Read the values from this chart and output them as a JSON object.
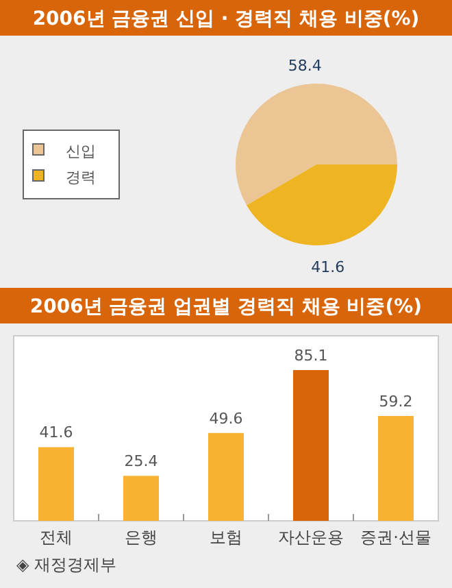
{
  "chart_data": [
    {
      "type": "pie",
      "title": "2006년 금융권 신입 · 경력직 채용 비중(%)",
      "categories": [
        "신입",
        "경력"
      ],
      "values": [
        58.4,
        41.6
      ],
      "colors": [
        "#ecc594",
        "#eeb422"
      ],
      "data_labels": true,
      "legend": "left"
    },
    {
      "type": "bar",
      "title": "2006년 금융권 업권별 경력직 채용 비중(%)",
      "categories": [
        "전체",
        "은행",
        "보험",
        "자산운용",
        "증권·선물"
      ],
      "values": [
        41.6,
        25.4,
        49.6,
        85.1,
        59.2
      ],
      "colors": [
        "#f9b233",
        "#f9b233",
        "#f9b233",
        "#d9650a",
        "#f9b233"
      ],
      "data_labels": true,
      "annotations": [
        "◈ 재정경제부"
      ]
    }
  ]
}
